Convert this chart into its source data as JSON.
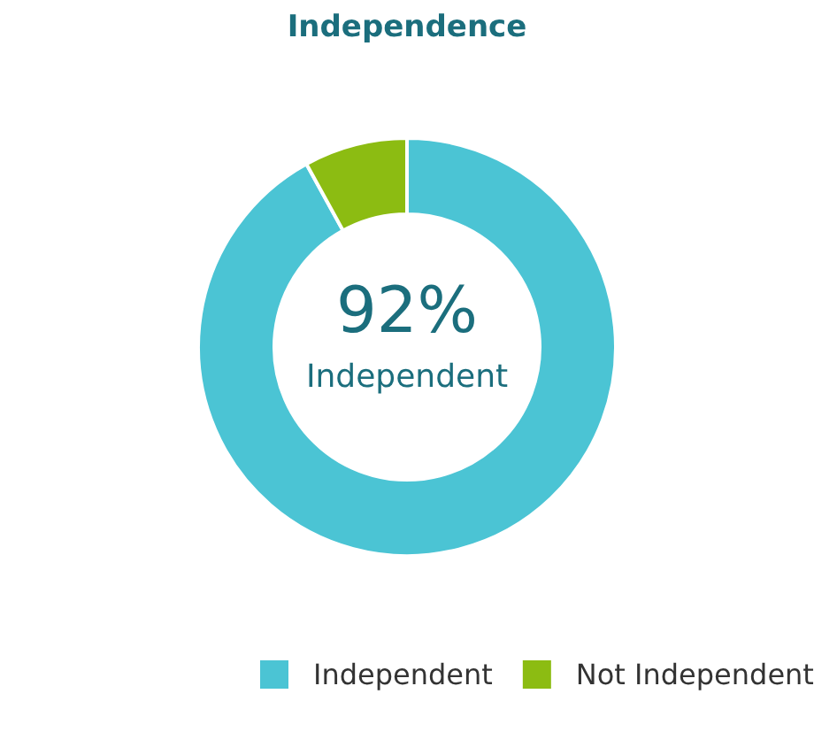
{
  "chart_data": {
    "type": "donut",
    "title": "Independence",
    "categories": [
      "Independent",
      "Not Independent"
    ],
    "values": [
      92,
      8
    ],
    "colors": [
      "#4bc4d4",
      "#8cbc12"
    ],
    "annotations": [
      "92%",
      "Independent"
    ],
    "legend": "bottom"
  }
}
